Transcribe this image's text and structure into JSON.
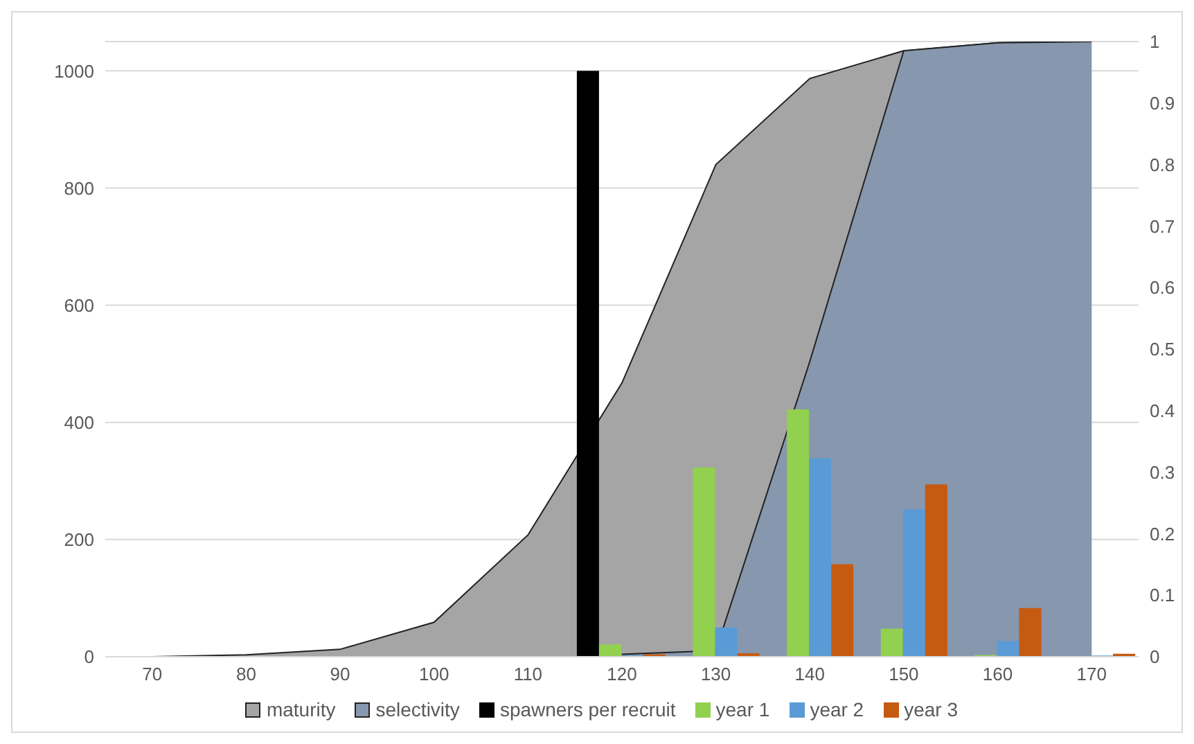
{
  "chart_data": {
    "type": "bar",
    "categories": [
      "70",
      "80",
      "90",
      "100",
      "110",
      "120",
      "130",
      "140",
      "150",
      "160",
      "170"
    ],
    "series": [
      {
        "name": "maturity",
        "type": "area",
        "axis": "y2",
        "color": "#a5a5a5",
        "values": [
          0,
          0.003,
          0.012,
          0.056,
          0.198,
          0.445,
          0.8,
          0.94,
          0.985,
          0.998,
          1
        ]
      },
      {
        "name": "selectivity",
        "type": "area",
        "axis": "y2",
        "color": "#8797ae",
        "values": [
          null,
          null,
          null,
          null,
          null,
          0.004,
          0.01,
          0.48,
          0.985,
          0.998,
          1
        ]
      },
      {
        "name": "spawners per recruit",
        "color": "#000000",
        "values": [
          null,
          null,
          null,
          null,
          null,
          1000,
          null,
          null,
          null,
          null,
          null
        ]
      },
      {
        "name": "year 1",
        "color": "#92d050",
        "values": [
          null,
          null,
          null,
          null,
          null,
          21,
          323,
          422,
          48,
          3,
          0
        ]
      },
      {
        "name": "year 2",
        "color": "#5b9bd5",
        "values": [
          null,
          null,
          null,
          null,
          null,
          2,
          50,
          339,
          252,
          27,
          2
        ]
      },
      {
        "name": "year 3",
        "color": "#c55a11",
        "values": [
          null,
          null,
          null,
          null,
          null,
          4,
          6,
          158,
          294,
          83,
          5
        ]
      }
    ],
    "ylim": [
      0,
      1050
    ],
    "yticks": [
      0,
      200,
      400,
      600,
      800,
      1000
    ],
    "y2lim": [
      0,
      1
    ],
    "y2ticks": [
      0,
      0.1,
      0.2,
      0.3,
      0.4,
      0.5,
      0.6,
      0.7,
      0.8,
      0.9,
      1
    ],
    "grid": "y",
    "legend": "bottom"
  }
}
